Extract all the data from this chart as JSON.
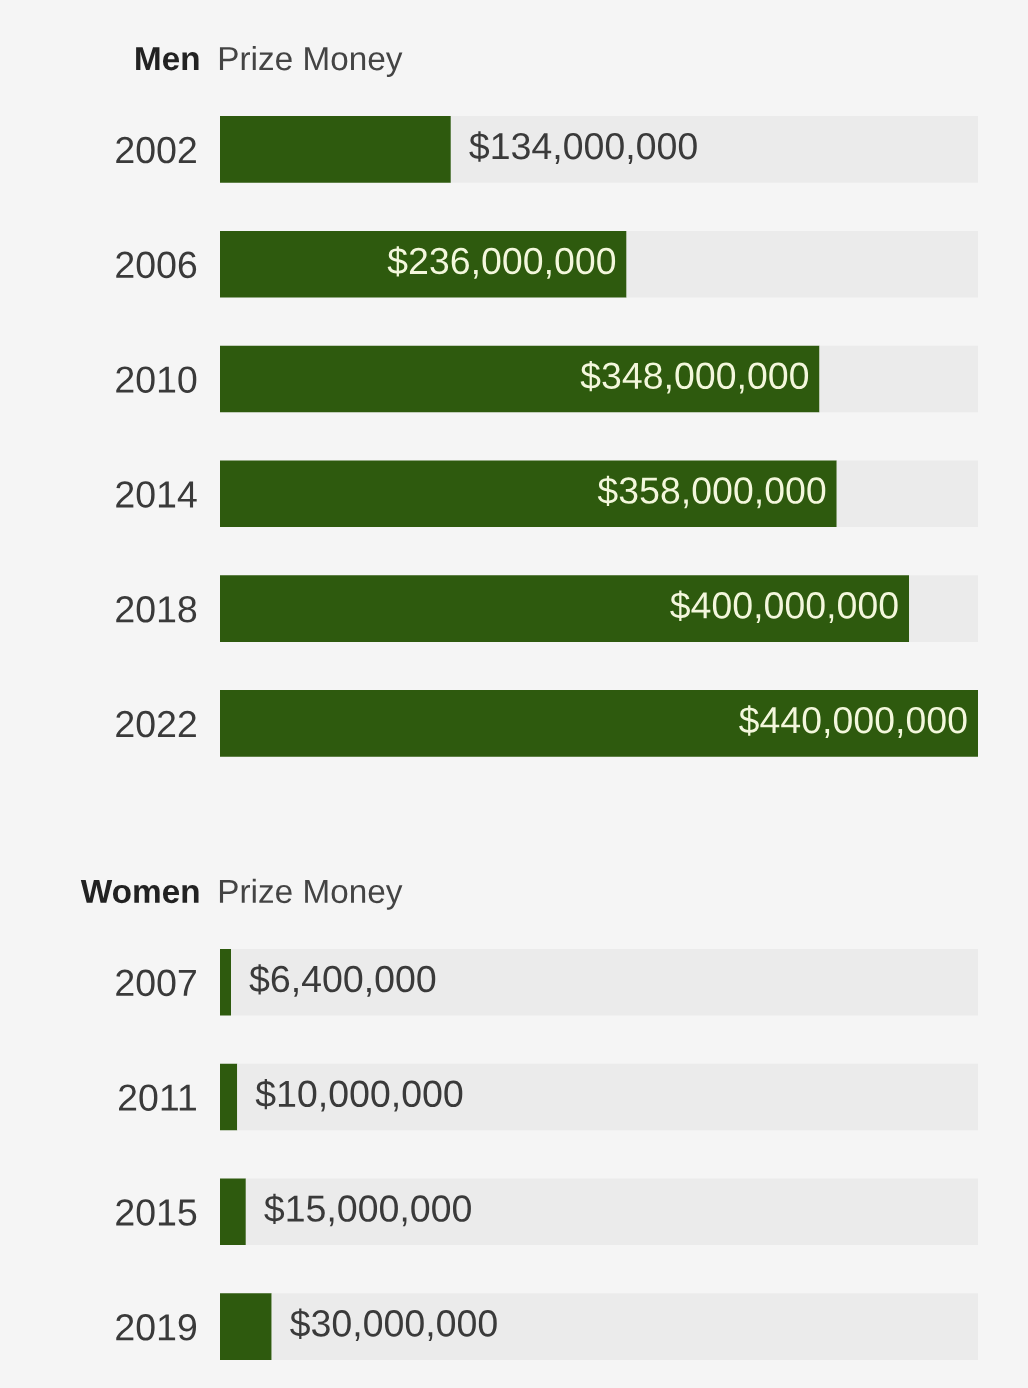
{
  "chart_data": [
    {
      "type": "bar",
      "orientation": "horizontal",
      "stacked": true,
      "title": "Men",
      "subtitle": "Prize Money",
      "categories": [
        "2002",
        "2006",
        "2010",
        "2014",
        "2018",
        "2022"
      ],
      "xlim": [
        0,
        440000000
      ],
      "tick_labels": "y",
      "series": [
        {
          "color": "#2e5a0e",
          "values": [
            134000000,
            236000000,
            348000000,
            358000000,
            400000000,
            440000000
          ],
          "value_labels": [
            "$134,000,000",
            "$236,000,000",
            "$348,000,000",
            "$358,000,000",
            "$400,000,000",
            "$440,000,000"
          ]
        },
        {
          "color": "#ebebeb",
          "values": [
            306000000,
            204000000,
            92000000,
            82000000,
            40000000,
            null
          ]
        }
      ]
    },
    {
      "type": "bar",
      "orientation": "horizontal",
      "stacked": true,
      "title": "Women",
      "subtitle": "Prize Money",
      "categories": [
        "2007",
        "2011",
        "2015",
        "2019"
      ],
      "xlim": [
        0,
        440000000
      ],
      "tick_labels": "y",
      "series": [
        {
          "color": "#2e5a0e",
          "values": [
            6400000,
            10000000,
            15000000,
            30000000
          ],
          "value_labels": [
            "$6,400,000",
            "$10,000,000",
            "$15,000,000",
            "$30,000,000"
          ]
        },
        {
          "color": "#ebebeb",
          "values": [
            433600000,
            430000000,
            425000000,
            410000000
          ]
        }
      ]
    }
  ]
}
